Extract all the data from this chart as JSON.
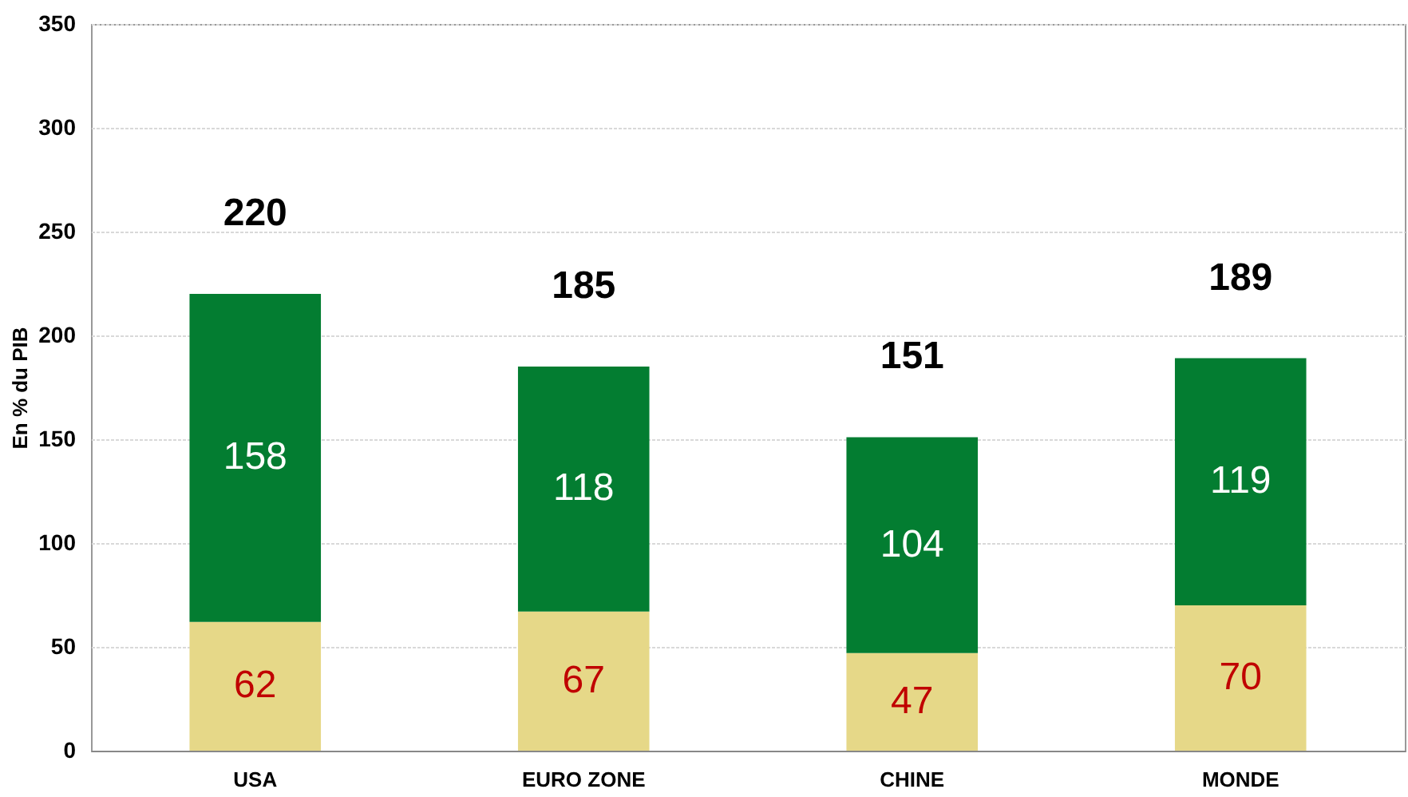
{
  "chart_data": {
    "type": "bar",
    "stacked": true,
    "ylabel": "En % du PIB",
    "categories": [
      "USA",
      "EURO ZONE",
      "CHINE",
      "MONDE"
    ],
    "series": [
      {
        "color": "#e6d888",
        "values": [
          62,
          67,
          47,
          70
        ]
      },
      {
        "color": "#037d31",
        "values": [
          158,
          118,
          104,
          119
        ]
      }
    ],
    "totals": [
      "220",
      "185",
      "151",
      "189"
    ],
    "data_labels": true,
    "grid": "y",
    "ylim": [
      0,
      350
    ],
    "yticks": [
      0,
      50,
      100,
      150,
      200,
      250,
      300,
      350
    ]
  }
}
